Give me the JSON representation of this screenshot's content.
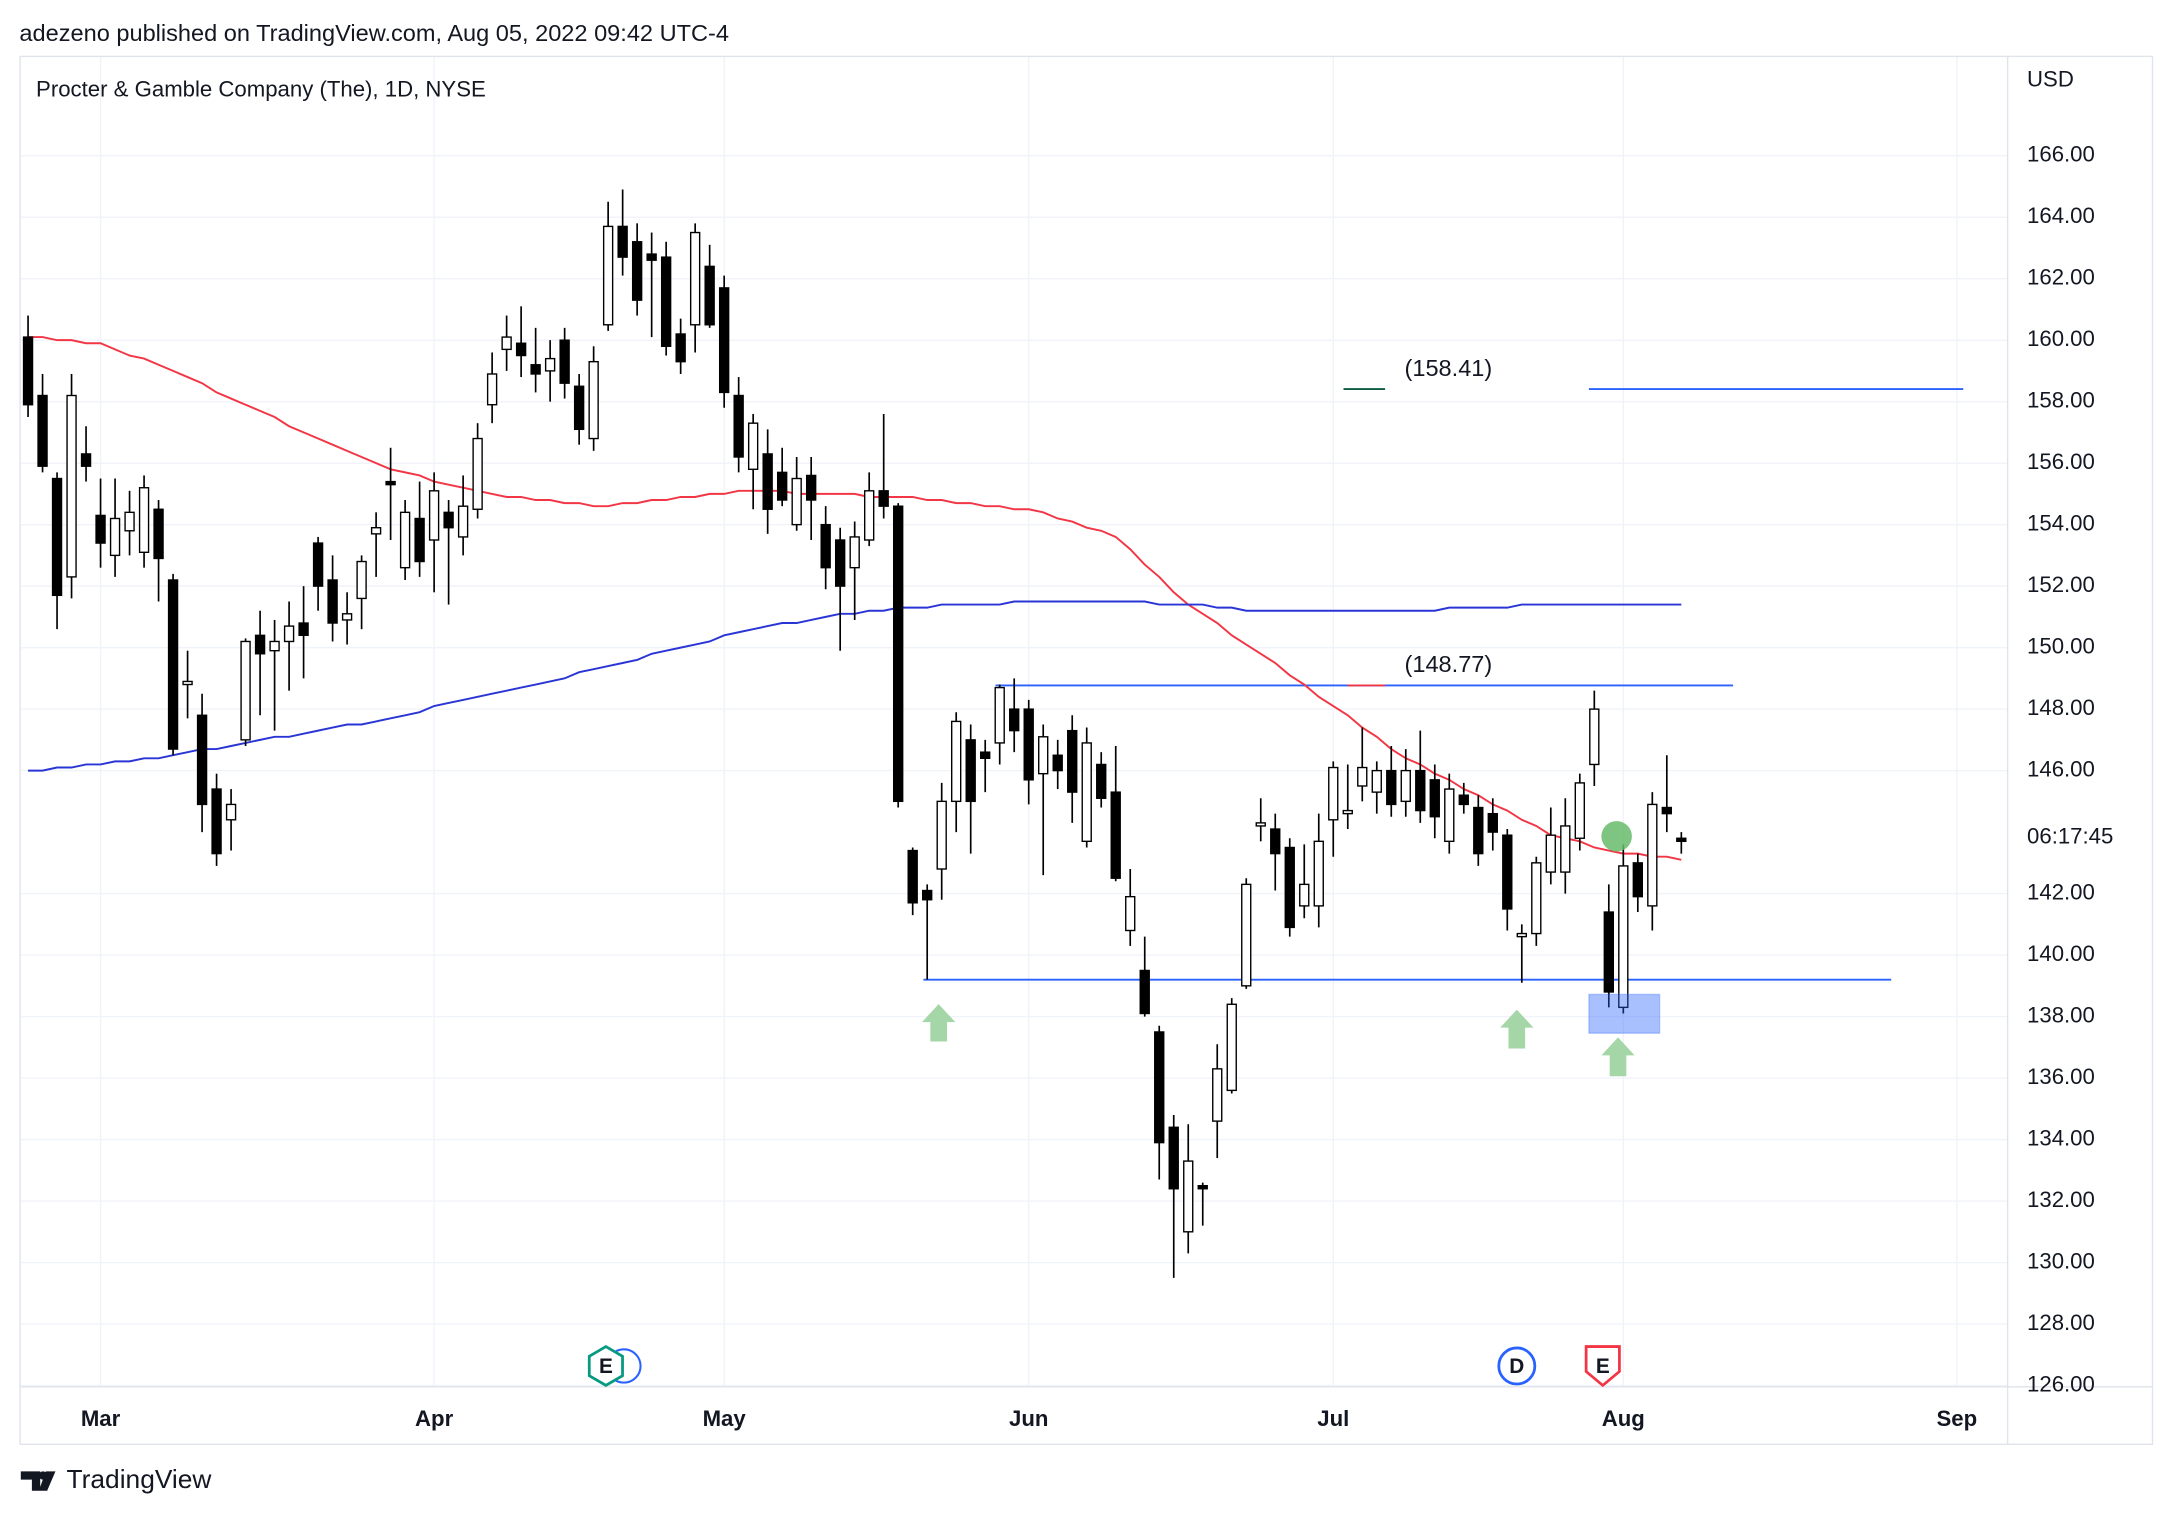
{
  "header": "adezeno published on TradingView.com, Aug 05, 2022 09:42 UTC-4",
  "footer": "TradingView",
  "chart_data": {
    "type": "candlestick",
    "title": "Procter & Gamble Company (The), 1D, NYSE",
    "currency": "USD",
    "countdown": "06:17:45",
    "up_color": "#ffffff",
    "down_color": "#000000",
    "wick_color": "#000000",
    "categories": [
      null,
      null,
      null,
      null,
      null,
      "Mar",
      null,
      null,
      null,
      null,
      null,
      null,
      null,
      null,
      null,
      null,
      null,
      null,
      null,
      null,
      null,
      null,
      null,
      null,
      null,
      null,
      null,
      null,
      "Apr",
      null,
      null,
      null,
      null,
      null,
      null,
      null,
      null,
      null,
      null,
      null,
      null,
      null,
      null,
      null,
      null,
      null,
      null,
      null,
      "May",
      null,
      null,
      null,
      null,
      null,
      null,
      null,
      null,
      null,
      null,
      null,
      null,
      null,
      null,
      null,
      null,
      null,
      null,
      null,
      null,
      "Jun",
      null,
      null,
      null,
      null,
      null,
      null,
      null,
      null,
      null,
      null,
      null,
      null,
      null,
      null,
      null,
      null,
      null,
      null,
      null,
      null,
      "Jul",
      null,
      null,
      null,
      null,
      null,
      null,
      null,
      null,
      null,
      null,
      null,
      null,
      null,
      null,
      null,
      null,
      null,
      null,
      null,
      "Aug",
      null,
      null,
      null,
      null,
      null,
      null,
      null,
      null,
      null,
      null,
      null,
      null,
      null,
      null,
      null,
      null,
      null,
      null,
      null,
      null,
      null,
      null,
      "Sep",
      null,
      null,
      null
    ],
    "open": [
      160.1,
      158.2,
      155.5,
      152.3,
      156.3,
      154.3,
      153.0,
      153.8,
      153.1,
      154.5,
      152.2,
      148.8,
      147.8,
      145.4,
      144.4,
      147.0,
      150.4,
      149.9,
      150.2,
      150.8,
      153.4,
      152.2,
      150.9,
      151.6,
      153.7,
      155.4,
      152.6,
      154.2,
      153.5,
      154.4,
      153.6,
      154.5,
      157.9,
      159.7,
      159.9,
      159.2,
      159.0,
      160.0,
      158.5,
      156.8,
      160.5,
      163.7,
      163.2,
      162.8,
      162.7,
      160.2,
      160.5,
      162.4,
      161.7,
      158.2,
      155.8,
      156.3,
      155.7,
      154.0,
      155.6,
      154.0,
      153.5,
      152.6,
      153.5,
      155.1,
      154.6,
      143.4,
      142.1,
      142.8,
      145.0,
      147.0,
      146.6,
      146.9,
      148.0,
      148.0,
      145.9,
      146.5,
      147.3,
      143.7,
      146.2,
      145.3,
      140.8,
      139.5,
      137.5,
      134.4,
      131.0,
      132.5,
      134.6,
      135.6,
      139.0,
      144.2,
      144.1,
      143.5,
      141.6,
      141.6,
      144.4,
      144.6,
      145.5,
      145.3,
      146.0,
      145.0,
      146.0,
      145.7,
      143.7,
      145.2,
      144.8,
      144.6,
      143.9,
      140.6,
      140.7,
      142.7,
      142.7,
      143.8,
      146.2,
      141.4,
      138.3,
      143.0,
      141.6,
      144.8,
      143.8,
      null,
      null,
      null,
      null,
      null,
      null,
      null,
      null,
      null,
      null,
      null,
      null,
      null,
      null,
      null,
      null,
      null,
      null,
      null,
      null,
      null,
      null
    ],
    "high": [
      160.8,
      158.9,
      155.7,
      158.9,
      157.2,
      155.5,
      155.5,
      155.1,
      155.6,
      154.8,
      152.4,
      149.9,
      148.5,
      145.9,
      145.4,
      150.3,
      151.2,
      150.9,
      151.5,
      152.0,
      153.6,
      153.0,
      151.8,
      153.0,
      154.4,
      156.5,
      154.8,
      155.4,
      155.7,
      154.8,
      155.6,
      157.3,
      159.6,
      160.8,
      161.1,
      160.4,
      160.0,
      160.4,
      158.9,
      159.8,
      164.5,
      164.9,
      163.8,
      163.5,
      163.2,
      160.7,
      163.8,
      163.1,
      162.1,
      158.8,
      157.6,
      157.1,
      156.5,
      156.2,
      156.2,
      154.6,
      153.9,
      154.1,
      155.7,
      157.6,
      154.7,
      143.5,
      142.3,
      145.6,
      147.9,
      147.5,
      147.0,
      148.8,
      149.0,
      148.3,
      147.5,
      147.0,
      147.8,
      147.4,
      146.6,
      146.8,
      142.8,
      140.6,
      137.7,
      134.8,
      134.5,
      132.6,
      137.1,
      138.6,
      142.5,
      145.1,
      144.6,
      143.8,
      143.6,
      144.6,
      146.3,
      146.2,
      147.4,
      146.3,
      146.8,
      146.7,
      147.3,
      146.2,
      145.9,
      145.6,
      145.2,
      145.1,
      144.1,
      141.0,
      143.2,
      144.8,
      145.1,
      145.9,
      148.6,
      142.3,
      143.6,
      143.3,
      145.3,
      146.5,
      144.0,
      null,
      null,
      null,
      null,
      null,
      null,
      null,
      null,
      null,
      null,
      null,
      null,
      null,
      null,
      null,
      null,
      null,
      null,
      null,
      null,
      null,
      null
    ],
    "low": [
      157.5,
      155.7,
      150.6,
      151.6,
      155.4,
      152.6,
      152.3,
      153.0,
      152.6,
      151.5,
      146.5,
      147.7,
      144.0,
      142.9,
      143.4,
      146.8,
      147.8,
      147.3,
      148.6,
      149.0,
      151.2,
      150.2,
      150.1,
      150.6,
      152.3,
      153.5,
      152.2,
      152.3,
      151.8,
      151.4,
      153.0,
      154.2,
      157.3,
      159.0,
      158.8,
      158.3,
      158.0,
      158.1,
      156.6,
      156.4,
      160.3,
      162.1,
      160.8,
      160.1,
      159.5,
      158.9,
      159.6,
      160.4,
      157.8,
      155.7,
      154.5,
      153.7,
      154.6,
      153.8,
      153.5,
      151.9,
      149.9,
      150.9,
      153.3,
      154.2,
      144.8,
      141.3,
      139.2,
      141.8,
      144.0,
      143.3,
      145.3,
      146.2,
      146.6,
      144.9,
      142.6,
      145.4,
      144.3,
      143.5,
      144.8,
      142.4,
      140.3,
      138.0,
      132.7,
      129.5,
      130.3,
      131.2,
      133.4,
      135.5,
      138.9,
      143.7,
      142.1,
      140.6,
      141.2,
      140.9,
      143.2,
      144.1,
      145.0,
      144.6,
      144.5,
      144.5,
      144.3,
      143.8,
      143.3,
      144.6,
      142.9,
      143.4,
      140.8,
      139.1,
      140.3,
      142.3,
      142.0,
      143.4,
      145.5,
      138.3,
      138.1,
      141.4,
      140.8,
      144.0,
      143.3,
      null,
      null,
      null,
      null,
      null,
      null,
      null,
      null,
      null,
      null,
      null,
      null,
      null,
      null,
      null,
      null,
      null,
      null,
      null,
      null,
      null,
      null
    ],
    "close": [
      157.9,
      155.9,
      151.7,
      158.2,
      155.9,
      153.4,
      154.2,
      154.4,
      155.2,
      152.9,
      146.7,
      148.9,
      144.9,
      143.3,
      144.9,
      150.2,
      149.8,
      150.2,
      150.7,
      150.4,
      152.0,
      150.8,
      151.1,
      152.8,
      153.9,
      155.3,
      154.4,
      152.8,
      155.1,
      153.9,
      154.6,
      156.8,
      158.9,
      160.1,
      159.5,
      158.9,
      159.4,
      158.6,
      157.1,
      159.3,
      163.7,
      162.7,
      161.3,
      162.6,
      159.8,
      159.3,
      163.5,
      160.5,
      158.3,
      156.2,
      157.3,
      154.5,
      154.8,
      155.5,
      154.8,
      152.6,
      152.0,
      153.6,
      155.1,
      154.6,
      145.0,
      141.7,
      141.8,
      145.0,
      147.6,
      145.0,
      146.4,
      148.7,
      147.3,
      145.7,
      147.1,
      146.0,
      145.3,
      146.9,
      145.1,
      142.5,
      141.9,
      138.1,
      133.9,
      132.4,
      133.3,
      132.4,
      136.3,
      138.4,
      142.3,
      144.3,
      143.3,
      140.9,
      142.3,
      143.7,
      146.1,
      144.7,
      146.1,
      146.0,
      144.9,
      146.0,
      144.7,
      144.5,
      145.4,
      144.9,
      143.3,
      144.0,
      141.5,
      140.7,
      143.0,
      143.9,
      144.2,
      145.6,
      148.0,
      138.8,
      142.9,
      141.9,
      144.9,
      144.6,
      143.7,
      null,
      null,
      null,
      null,
      null,
      null,
      null,
      null,
      null,
      null,
      null,
      null,
      null,
      null,
      null,
      null,
      null,
      null,
      null,
      null,
      null,
      null
    ],
    "moving_averages": [
      {
        "color": "#f23645",
        "values": [
          160.1,
          160.1,
          160.0,
          160.0,
          159.9,
          159.9,
          159.7,
          159.5,
          159.4,
          159.2,
          159.0,
          158.8,
          158.6,
          158.3,
          158.1,
          157.9,
          157.7,
          157.5,
          157.2,
          157.0,
          156.8,
          156.6,
          156.4,
          156.2,
          156.0,
          155.8,
          155.7,
          155.6,
          155.4,
          155.3,
          155.2,
          155.1,
          155.0,
          154.9,
          154.9,
          154.8,
          154.8,
          154.7,
          154.7,
          154.6,
          154.6,
          154.7,
          154.7,
          154.8,
          154.8,
          154.9,
          154.9,
          155.0,
          155.0,
          155.1,
          155.1,
          155.1,
          155.1,
          155.0,
          155.0,
          155.0,
          155.0,
          155.0,
          154.9,
          154.9,
          154.9,
          154.9,
          154.8,
          154.8,
          154.7,
          154.7,
          154.6,
          154.6,
          154.5,
          154.5,
          154.4,
          154.2,
          154.1,
          153.9,
          153.8,
          153.6,
          153.2,
          152.7,
          152.3,
          151.8,
          151.4,
          151.1,
          150.8,
          150.4,
          150.1,
          149.8,
          149.5,
          149.1,
          148.8,
          148.4,
          148.1,
          147.8,
          147.4,
          147.1,
          146.7,
          146.4,
          146.2,
          145.9,
          145.7,
          145.4,
          145.2,
          144.9,
          144.7,
          144.4,
          144.2,
          143.9,
          143.8,
          143.7,
          143.5,
          143.4,
          143.3,
          143.3,
          143.2,
          143.2,
          143.1,
          null,
          null,
          null,
          null,
          null,
          null,
          null,
          null,
          null,
          null,
          null,
          null,
          null,
          null,
          null,
          null,
          null,
          null,
          null,
          null,
          null,
          null
        ]
      },
      {
        "color": "#2a35d6",
        "values": [
          146.0,
          146.0,
          146.1,
          146.1,
          146.2,
          146.2,
          146.3,
          146.3,
          146.4,
          146.4,
          146.5,
          146.6,
          146.7,
          146.7,
          146.8,
          146.9,
          147.0,
          147.1,
          147.1,
          147.2,
          147.3,
          147.4,
          147.5,
          147.5,
          147.6,
          147.7,
          147.8,
          147.9,
          148.1,
          148.2,
          148.3,
          148.4,
          148.5,
          148.6,
          148.7,
          148.8,
          148.9,
          149.0,
          149.2,
          149.3,
          149.4,
          149.5,
          149.6,
          149.8,
          149.9,
          150.0,
          150.1,
          150.2,
          150.4,
          150.5,
          150.6,
          150.7,
          150.8,
          150.8,
          150.9,
          151.0,
          151.1,
          151.1,
          151.2,
          151.2,
          151.3,
          151.3,
          151.3,
          151.4,
          151.4,
          151.4,
          151.4,
          151.4,
          151.5,
          151.5,
          151.5,
          151.5,
          151.5,
          151.5,
          151.5,
          151.5,
          151.5,
          151.5,
          151.4,
          151.4,
          151.4,
          151.4,
          151.3,
          151.3,
          151.2,
          151.2,
          151.2,
          151.2,
          151.2,
          151.2,
          151.2,
          151.2,
          151.2,
          151.2,
          151.2,
          151.2,
          151.2,
          151.2,
          151.3,
          151.3,
          151.3,
          151.3,
          151.3,
          151.4,
          151.4,
          151.4,
          151.4,
          151.4,
          151.4,
          151.4,
          151.4,
          151.4,
          151.4,
          151.4,
          151.4,
          null,
          null,
          null,
          null,
          null,
          null,
          null,
          null,
          null,
          null,
          null,
          null,
          null,
          null,
          null,
          null,
          null,
          null,
          null,
          null,
          null,
          null
        ]
      }
    ],
    "levels": [
      {
        "value": 158.41,
        "label": "(158.41)",
        "color": "#0b5d3f",
        "line_color": "#2962ff"
      },
      {
        "value": 148.77,
        "label": "(148.77)",
        "color": "#f23645",
        "line_color": "#2962ff"
      },
      {
        "value": 139.2,
        "line_color": "#2962ff"
      }
    ],
    "events": [
      {
        "label": "E",
        "color": "#089981"
      },
      {
        "label": "D",
        "color": "#2962ff"
      },
      {
        "label": "E",
        "color": "#f23645"
      }
    ],
    "ylim": [
      125.96,
      169.25
    ],
    "yticks": [
      {
        "value": 126,
        "label": "126.00"
      },
      {
        "value": 128,
        "label": "128.00"
      },
      {
        "value": 130,
        "label": "130.00"
      },
      {
        "value": 132,
        "label": "132.00"
      },
      {
        "value": 134,
        "label": "134.00"
      },
      {
        "value": 136,
        "label": "136.00"
      },
      {
        "value": 138,
        "label": "138.00"
      },
      {
        "value": 140,
        "label": "140.00"
      },
      {
        "value": 142,
        "label": "142.00"
      },
      {
        "value": 146,
        "label": "146.00"
      },
      {
        "value": 148,
        "label": "148.00"
      },
      {
        "value": 150,
        "label": "150.00"
      },
      {
        "value": 152,
        "label": "152.00"
      },
      {
        "value": 154,
        "label": "154.00"
      },
      {
        "value": 156,
        "label": "156.00"
      },
      {
        "value": 158,
        "label": "158.00"
      },
      {
        "value": 160,
        "label": "160.00"
      },
      {
        "value": 162,
        "label": "162.00"
      },
      {
        "value": 164,
        "label": "164.00"
      },
      {
        "value": 166,
        "label": "166.00"
      }
    ],
    "grid": true
  }
}
